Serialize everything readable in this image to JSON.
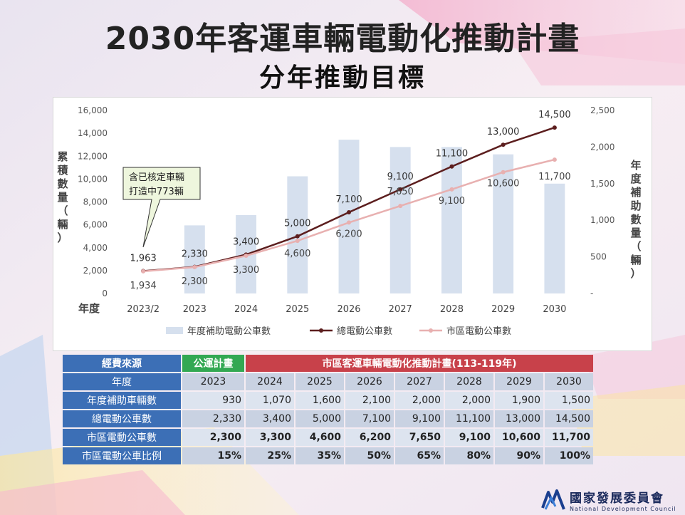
{
  "title": "2030年客運車輛電動化推動計畫",
  "subtitle": "分年推動目標",
  "chart_data": {
    "type": "bar+line",
    "categories": [
      "2023/2",
      "2023",
      "2024",
      "2025",
      "2026",
      "2027",
      "2028",
      "2029",
      "2030"
    ],
    "x_axis_label": "年度",
    "left_axis_label": "累積數量（輛）",
    "right_axis_label": "年度補助數量（輛）",
    "left_ylim": [
      0,
      16000
    ],
    "left_ticks": [
      "0",
      "2,000",
      "4,000",
      "6,000",
      "8,000",
      "10,000",
      "12,000",
      "14,000",
      "16,000"
    ],
    "right_ylim": [
      0,
      2500
    ],
    "right_ticks": [
      "-",
      "500",
      "1,000",
      "1,500",
      "2,000",
      "2,500"
    ],
    "series": [
      {
        "name": "年度補助電動公車數",
        "kind": "bar",
        "axis": "right",
        "color": "#d6e0ee",
        "values": [
          null,
          930,
          1070,
          1600,
          2100,
          2000,
          2000,
          1900,
          1500
        ]
      },
      {
        "name": "總電動公車數",
        "kind": "line",
        "axis": "left",
        "color": "#5c1e1e",
        "values": [
          1963,
          2330,
          3400,
          5000,
          7100,
          9100,
          11100,
          13000,
          14500
        ],
        "labels": [
          "1,963",
          "2,330",
          "3,400",
          "5,000",
          "7,100",
          "9,100",
          "11,100",
          "13,000",
          "14,500"
        ]
      },
      {
        "name": "市區電動公車數",
        "kind": "line",
        "axis": "left",
        "color": "#e8b0b0",
        "values": [
          1934,
          2300,
          3300,
          4600,
          6200,
          7650,
          9100,
          10600,
          11700
        ],
        "labels": [
          "1,934",
          "2,300",
          "3,300",
          "4,600",
          "6,200",
          "7,650",
          "9,100",
          "10,600",
          "11,700"
        ]
      }
    ],
    "callout": [
      "含已核定車輛",
      "打造中773輛"
    ]
  },
  "table": {
    "source_label": "經費來源",
    "green_label": "公運計畫",
    "red_label": "市區客運車輛電動化推動計畫(113-119年)",
    "rows": [
      {
        "label": "年度",
        "values": [
          "2023",
          "2024",
          "2025",
          "2026",
          "2027",
          "2028",
          "2029",
          "2030"
        ]
      },
      {
        "label": "年度補助車輛數",
        "values": [
          "930",
          "1,070",
          "1,600",
          "2,100",
          "2,000",
          "2,000",
          "1,900",
          "1,500"
        ]
      },
      {
        "label": "總電動公車數",
        "values": [
          "2,330",
          "3,400",
          "5,000",
          "7,100",
          "9,100",
          "11,100",
          "13,000",
          "14,500"
        ]
      },
      {
        "label": "市區電動公車數",
        "values": [
          "2,300",
          "3,300",
          "4,600",
          "6,200",
          "7,650",
          "9,100",
          "10,600",
          "11,700"
        ]
      },
      {
        "label": "市區電動公車比例",
        "values": [
          "15%",
          "25%",
          "35%",
          "50%",
          "65%",
          "80%",
          "90%",
          "100%"
        ]
      }
    ]
  },
  "logo": {
    "zh": "國家發展委員會",
    "en": "National Development Council"
  }
}
